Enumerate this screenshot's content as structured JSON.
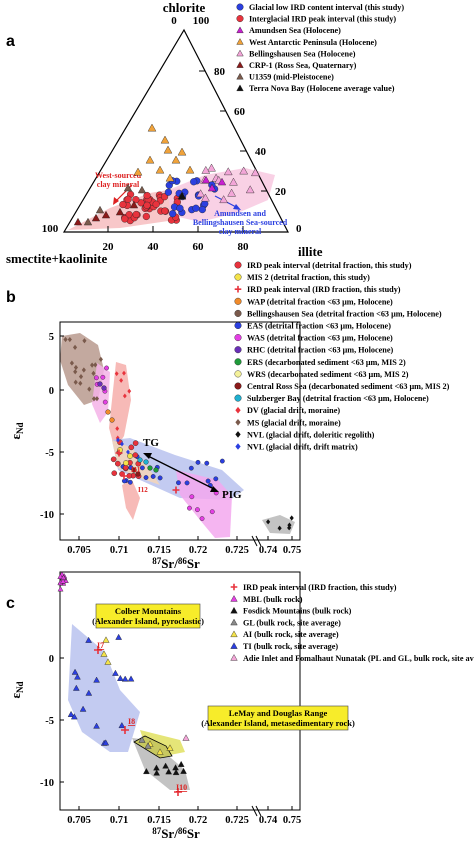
{
  "chart_data": [
    {
      "panel": "a",
      "type": "ternary",
      "vertices": {
        "top": "chlorite",
        "right": "illite",
        "left": "smectite+kaolinite"
      },
      "corner_ticks": {
        "top_left": "0",
        "top_right": "100",
        "right": "0",
        "left": "100"
      },
      "side_ticks": [
        "20",
        "40",
        "60",
        "80"
      ],
      "right_side_ticks": [
        "80",
        "60",
        "40",
        "20"
      ],
      "legend": [
        {
          "label": "Glacial low IRD content interval (this study)",
          "marker": "circle",
          "color": "#2b3fe0"
        },
        {
          "label": "Interglacial IRD peak interval (this study)",
          "marker": "circle",
          "color": "#e8333d"
        },
        {
          "label": "Amundsen Sea (Holocene)",
          "marker": "triangle",
          "color": "#c81fd0"
        },
        {
          "label": "West Antarctic Peninsula (Holocene)",
          "marker": "triangle",
          "color": "#f0a23a"
        },
        {
          "label": "Bellingshausen Sea (Holocene)",
          "marker": "triangle",
          "color": "#f3a6d8"
        },
        {
          "label": "CRP-1 (Ross Sea, Quaternary)",
          "marker": "triangle",
          "color": "#8b1a1a"
        },
        {
          "label": "U1359 (mid-Pleistocene)",
          "marker": "triangle",
          "color": "#7a5a4c"
        },
        {
          "label": "Terra Nova Bay (Holocene average value)",
          "marker": "triangle",
          "color": "#111111"
        }
      ],
      "annotations": [
        "West-sourced clay mineral",
        "Amundsen and Bellingshausen Sea-sourced clay mineral"
      ]
    },
    {
      "panel": "b",
      "type": "scatter",
      "xlabel": "87Sr/86Sr",
      "ylabel": "εNd",
      "x_ticks": [
        "0.705",
        "0.71",
        "0.715",
        "0.72",
        "0.725",
        "0.74",
        "0.75"
      ],
      "y_ticks": [
        "5",
        "0",
        "-5",
        "-10"
      ],
      "annotations": [
        "TG",
        "PIG",
        "I11",
        "I12"
      ],
      "legend": [
        {
          "label": "IRD peak interval (detrital fraction, this study)",
          "marker": "circle",
          "color": "#e8333d"
        },
        {
          "label": "MIS 2 (detrital fraction, this study)",
          "marker": "circle",
          "color": "#f4e34a"
        },
        {
          "label": "IRD peak interval (IRD fraction, this study)",
          "marker": "cross",
          "color": "#e8333d"
        },
        {
          "label": "WAP (detrital fraction <63 μm, Holocene)",
          "marker": "circle",
          "color": "#f08a2a"
        },
        {
          "label": "Bellingshausen Sea (detrital fraction <63 μm, Holocene)",
          "marker": "circle",
          "color": "#7a5a4c"
        },
        {
          "label": "EAS (detrital fraction <63 μm, Holocene)",
          "marker": "circle",
          "color": "#2b3fe0"
        },
        {
          "label": "WAS (detrital fraction <63 μm, Holocene)",
          "marker": "circle",
          "color": "#e43fe4"
        },
        {
          "label": "RHC (detrital fraction <63 μm, Holocene)",
          "marker": "circle",
          "color": "#6a2fb8"
        },
        {
          "label": "ERS (decarbonated sediment <63 μm, MIS 2)",
          "marker": "circle",
          "color": "#1f9a3a"
        },
        {
          "label": "WRS (decarbonated sediment <63 μm, MIS 2)",
          "marker": "circle",
          "color": "#f4f19a"
        },
        {
          "label": "Central Ross Sea (decarbonated sediment <63 μm, MIS 2)",
          "marker": "circle",
          "color": "#8b1a1a"
        },
        {
          "label": "Sulzberger Bay (detrital fraction <63 μm, Holocene)",
          "marker": "circle",
          "color": "#1fb0d0"
        },
        {
          "label": "DV (glacial drift, moraine)",
          "marker": "diamond",
          "color": "#e8333d"
        },
        {
          "label": "MS (glacial drift, moraine)",
          "marker": "diamond",
          "color": "#7a5a4c"
        },
        {
          "label": "NVL (glacial drift, doleritic regolith)",
          "marker": "diamond",
          "color": "#111111"
        },
        {
          "label": "NVL (glacial drift, drift matrix)",
          "marker": "diamond",
          "color": "#2b3fe0"
        }
      ]
    },
    {
      "panel": "c",
      "type": "scatter",
      "xlabel": "87Sr/86Sr",
      "ylabel": "εNd",
      "x_ticks": [
        "0.705",
        "0.71",
        "0.715",
        "0.72",
        "0.725",
        "0.74",
        "0.75"
      ],
      "y_ticks": [
        "0",
        "-5",
        "-10"
      ],
      "annotations": [
        "I7",
        "I8",
        "I10"
      ],
      "boxes": [
        "Colber Mountains (Alexander Island, pyroclastic)",
        "LeMay and Douglas Range (Alexander Island, metasedimentary rock)"
      ],
      "legend": [
        {
          "label": "IRD peak interval (IRD fraction, this study)",
          "marker": "cross",
          "color": "#e8333d"
        },
        {
          "label": "MBL (bulk rock)",
          "marker": "triangle",
          "color": "#e43fe4"
        },
        {
          "label": "Fosdick Mountains (bulk rock)",
          "marker": "triangle",
          "color": "#111111"
        },
        {
          "label": "GL (bulk rock, site average)",
          "marker": "triangle",
          "color": "#8a8a8a"
        },
        {
          "label": "AI (bulk rock, site average)",
          "marker": "triangle",
          "color": "#f4e34a"
        },
        {
          "label": "TI (bulk rock, site average)",
          "marker": "triangle",
          "color": "#2b3fe0"
        },
        {
          "label": "Adie Inlet and Fomalhaut Nunatak (PL and GL, bulk rock, site average)",
          "marker": "triangle",
          "color": "#f3a6d8"
        }
      ]
    }
  ],
  "panel_letters": [
    "a",
    "b",
    "c"
  ]
}
